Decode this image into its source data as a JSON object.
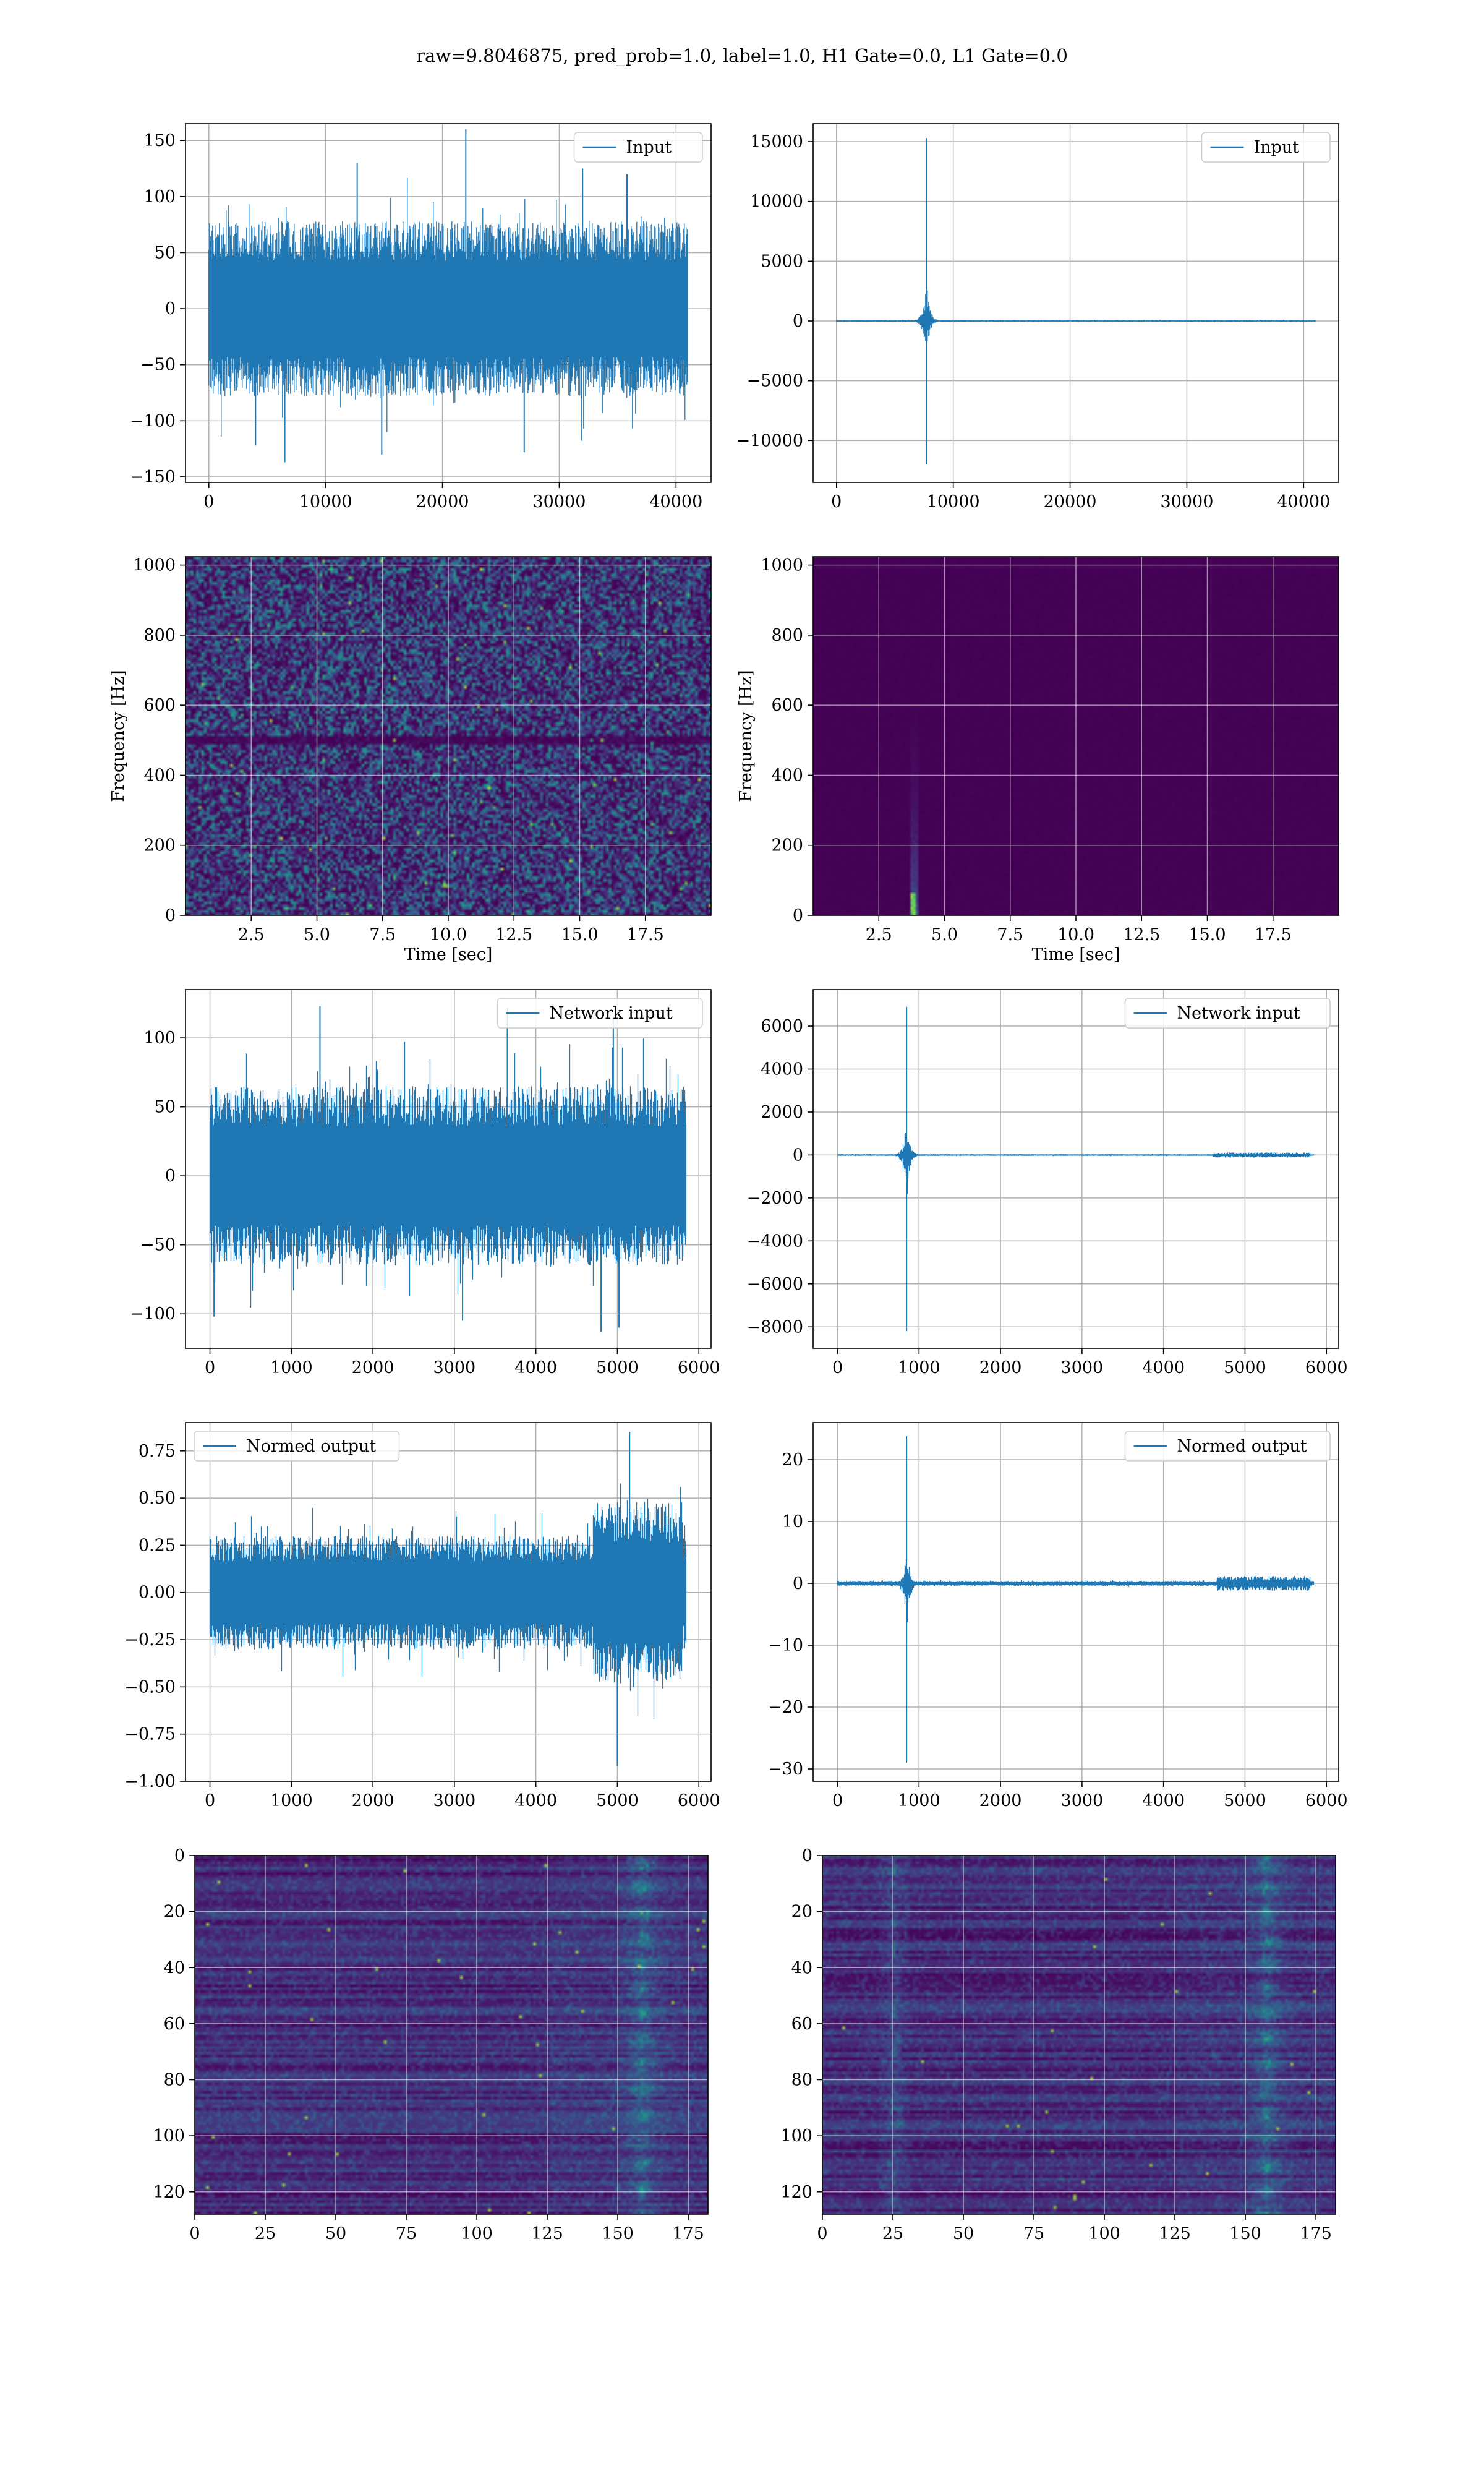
{
  "figure": {
    "suptitle": "raw=9.8046875, pred_prob=1.0, label=1.0, H1 Gate=0.0, L1 Gate=0.0"
  },
  "colors": {
    "line": "#1f77b4",
    "grid": "#b0b0b0",
    "viridis_low": "#440154",
    "viridis_high": "#fde725"
  },
  "chart_data": [
    {
      "id": "h1-input",
      "type": "line",
      "title": "",
      "xlabel": "",
      "ylabel": "",
      "legend": {
        "label": "Input",
        "loc": "upper right"
      },
      "xlim": [
        -2000,
        43000
      ],
      "ylim": [
        -155,
        165
      ],
      "xticks": [
        0,
        10000,
        20000,
        30000,
        40000
      ],
      "yticks": [
        -150,
        -100,
        -50,
        0,
        50,
        100,
        150
      ],
      "signal": {
        "n": 40960,
        "envelope": 78,
        "peaks": [
          [
            22000,
            160
          ],
          [
            6500,
            -137
          ],
          [
            14800,
            -130
          ],
          [
            27000,
            -128
          ],
          [
            4000,
            -122
          ],
          [
            12700,
            130
          ],
          [
            32000,
            125
          ],
          [
            35800,
            120
          ]
        ]
      },
      "grid": true
    },
    {
      "id": "l1-input",
      "type": "line",
      "title": "",
      "xlabel": "",
      "ylabel": "",
      "legend": {
        "label": "Input",
        "loc": "upper right"
      },
      "xlim": [
        -2000,
        43000
      ],
      "ylim": [
        -13500,
        16500
      ],
      "xticks": [
        0,
        10000,
        20000,
        30000,
        40000
      ],
      "yticks": [
        -10000,
        -5000,
        0,
        5000,
        10000,
        15000
      ],
      "signal": {
        "n": 40960,
        "envelope": 60,
        "glitch_x": 7700,
        "glitch_max": 15300,
        "glitch_min": -12000
      },
      "grid": true
    },
    {
      "id": "h1-spectrogram",
      "type": "heatmap",
      "title": "",
      "xlabel": "Time [sec]",
      "ylabel": "Frequency [Hz]",
      "xlim": [
        0,
        20
      ],
      "ylim": [
        0,
        1024
      ],
      "xticks": [
        2.5,
        5.0,
        7.5,
        10.0,
        12.5,
        15.0,
        17.5
      ],
      "yticks": [
        0,
        200,
        400,
        600,
        800,
        1000
      ],
      "colormap": "viridis",
      "pattern": "noise",
      "dark_band_hz": 500,
      "grid": true
    },
    {
      "id": "l1-spectrogram",
      "type": "heatmap",
      "title": "",
      "xlabel": "Time [sec]",
      "ylabel": "Frequency [Hz]",
      "xlim": [
        0,
        20
      ],
      "ylim": [
        0,
        1024
      ],
      "xticks": [
        2.5,
        5.0,
        7.5,
        10.0,
        12.5,
        15.0,
        17.5
      ],
      "yticks": [
        0,
        200,
        400,
        600,
        800,
        1000
      ],
      "colormap": "viridis",
      "pattern": "glitch",
      "glitch_time": 3.8,
      "grid": true
    },
    {
      "id": "h1-network-input",
      "type": "line",
      "title": "",
      "xlabel": "",
      "ylabel": "",
      "legend": {
        "label": "Network input",
        "loc": "upper right"
      },
      "xlim": [
        -300,
        6150
      ],
      "ylim": [
        -125,
        135
      ],
      "xticks": [
        0,
        1000,
        2000,
        3000,
        4000,
        5000,
        6000
      ],
      "yticks": [
        -100,
        -50,
        0,
        50,
        100
      ],
      "signal": {
        "n": 5840,
        "envelope": 65,
        "peaks": [
          [
            4950,
            115
          ],
          [
            1350,
            123
          ],
          [
            3650,
            122
          ],
          [
            4800,
            -113
          ],
          [
            3100,
            -105
          ],
          [
            5020,
            -110
          ],
          [
            50,
            -102
          ]
        ]
      },
      "grid": true
    },
    {
      "id": "l1-network-input",
      "type": "line",
      "title": "",
      "xlabel": "",
      "ylabel": "",
      "legend": {
        "label": "Network input",
        "loc": "upper right"
      },
      "xlim": [
        -300,
        6150
      ],
      "ylim": [
        -9000,
        7700
      ],
      "xticks": [
        0,
        1000,
        2000,
        3000,
        4000,
        5000,
        6000
      ],
      "yticks": [
        -8000,
        -6000,
        -4000,
        -2000,
        0,
        2000,
        4000,
        6000
      ],
      "signal": {
        "n": 5840,
        "envelope": 40,
        "glitch_x": 850,
        "glitch_max": 6900,
        "glitch_min": -8200,
        "tail_burst": [
          4600,
          5800,
          120
        ]
      },
      "grid": true
    },
    {
      "id": "h1-normed-output",
      "type": "line",
      "title": "",
      "xlabel": "",
      "ylabel": "",
      "legend": {
        "label": "Normed output",
        "loc": "upper left"
      },
      "xlim": [
        -300,
        6150
      ],
      "ylim": [
        -1.0,
        0.9
      ],
      "xticks": [
        0,
        1000,
        2000,
        3000,
        4000,
        5000,
        6000
      ],
      "yticks": [
        -1.0,
        -0.75,
        -0.5,
        -0.25,
        0.0,
        0.25,
        0.5,
        0.75
      ],
      "signal": {
        "n": 5840,
        "envelope": 0.3,
        "burst": [
          4700,
          5800,
          0.75
        ],
        "peaks": [
          [
            5150,
            0.85
          ],
          [
            5000,
            -0.92
          ]
        ]
      },
      "grid": true
    },
    {
      "id": "l1-normed-output",
      "type": "line",
      "title": "",
      "xlabel": "",
      "ylabel": "",
      "legend": {
        "label": "Normed output",
        "loc": "upper right"
      },
      "xlim": [
        -300,
        6150
      ],
      "ylim": [
        -32,
        26
      ],
      "xticks": [
        0,
        1000,
        2000,
        3000,
        4000,
        5000,
        6000
      ],
      "yticks": [
        -30,
        -20,
        -10,
        0,
        10,
        20
      ],
      "signal": {
        "n": 5840,
        "envelope": 0.4,
        "glitch_x": 850,
        "glitch_max": 23.8,
        "glitch_min": -29,
        "tail_burst": [
          4650,
          5800,
          1.2
        ]
      },
      "grid": true
    },
    {
      "id": "h1-feature-map",
      "type": "heatmap",
      "title": "",
      "xlabel": "",
      "ylabel": "",
      "xlim": [
        0,
        182
      ],
      "ylim": [
        128,
        0
      ],
      "xticks": [
        0,
        25,
        50,
        75,
        100,
        125,
        150,
        175
      ],
      "yticks": [
        0,
        20,
        40,
        60,
        80,
        100,
        120
      ],
      "colormap": "viridis",
      "pattern": "features",
      "hot_col": 158,
      "grid": true
    },
    {
      "id": "l1-feature-map",
      "type": "heatmap",
      "title": "",
      "xlabel": "",
      "ylabel": "",
      "xlim": [
        0,
        182
      ],
      "ylim": [
        128,
        0
      ],
      "xticks": [
        0,
        25,
        50,
        75,
        100,
        125,
        150,
        175
      ],
      "yticks": [
        0,
        20,
        40,
        60,
        80,
        100,
        120
      ],
      "colormap": "viridis",
      "pattern": "features",
      "hot_col": 157,
      "second_col": 25,
      "grid": true
    }
  ]
}
